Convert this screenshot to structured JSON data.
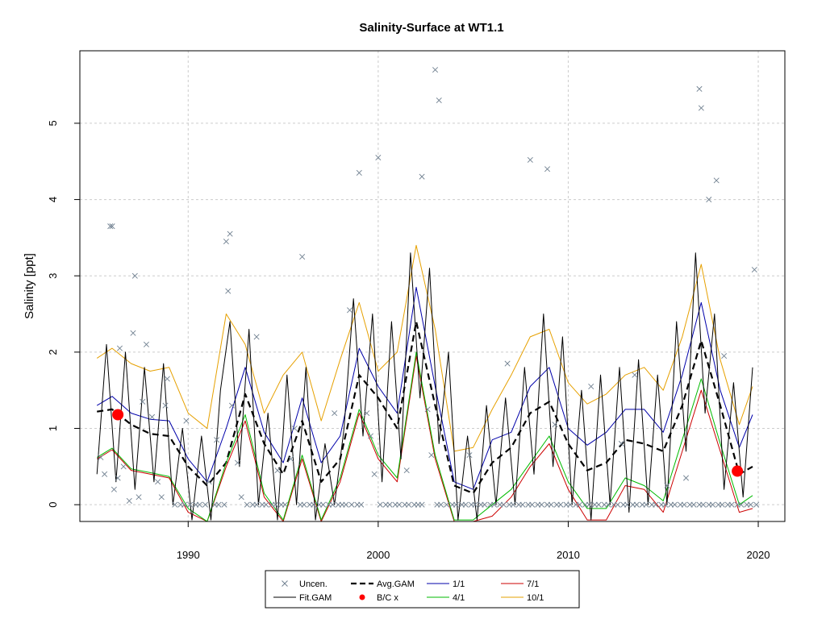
{
  "chart_data": {
    "type": "line",
    "title": "Salinity-Surface at WT1.1",
    "xlabel": "",
    "ylabel": "Salinity [ppt]",
    "xlim": [
      1984.3,
      2021.4
    ],
    "ylim": [
      -0.22,
      5.95
    ],
    "x_ticks": [
      1990,
      2000,
      2010,
      2020
    ],
    "y_ticks": [
      0,
      1,
      2,
      3,
      4,
      5
    ],
    "grid": true,
    "legend_position": "bottom-center",
    "legend": [
      {
        "key": "uncen",
        "label": "Uncen.",
        "symbol": "x",
        "color": "#708090"
      },
      {
        "key": "avg_gam",
        "label": "Avg.GAM",
        "symbol": "dash",
        "color": "#000000"
      },
      {
        "key": "q1",
        "label": "1/1",
        "symbol": "line",
        "color": "#0000aa"
      },
      {
        "key": "q7",
        "label": "7/1",
        "symbol": "line",
        "color": "#cc0000"
      },
      {
        "key": "fit_gam",
        "label": "Fit.GAM",
        "symbol": "line",
        "color": "#000000"
      },
      {
        "key": "bc",
        "label": "B/C x",
        "symbol": "dot",
        "color": "#ff0000"
      },
      {
        "key": "q4",
        "label": "4/1",
        "symbol": "line",
        "color": "#00bb00"
      },
      {
        "key": "q10",
        "label": "10/1",
        "symbol": "line",
        "color": "#e6a000"
      }
    ],
    "series": [
      {
        "name": "Avg.GAM",
        "color": "#000000",
        "x": [
          1985.2,
          1986,
          1987,
          1988,
          1989,
          1990,
          1991,
          1992,
          1993,
          1994,
          1995,
          1996,
          1997,
          1998,
          1999,
          2000,
          2001,
          2002,
          2003,
          2004,
          2005,
          2006,
          2007,
          2008,
          2009,
          2010,
          2011,
          2012,
          2013,
          2014,
          2015,
          2016,
          2017,
          2018,
          2019,
          2019.7
        ],
        "y": [
          1.22,
          1.25,
          1.05,
          0.93,
          0.9,
          0.5,
          0.25,
          0.55,
          1.45,
          0.8,
          0.4,
          1.1,
          0.3,
          0.6,
          1.7,
          1.4,
          1.0,
          2.4,
          1.3,
          0.25,
          0.15,
          0.55,
          0.75,
          1.2,
          1.35,
          0.8,
          0.45,
          0.55,
          0.85,
          0.8,
          0.7,
          1.3,
          2.15,
          1.3,
          0.4,
          0.5
        ]
      },
      {
        "name": "1/1",
        "color": "#0000aa",
        "x": [
          1985.2,
          1986,
          1987,
          1988,
          1989,
          1990,
          1991,
          1992,
          1993,
          1994,
          1995,
          1996,
          1997,
          1998,
          1999,
          2000,
          2001,
          2002,
          2003,
          2004,
          2005,
          2006,
          2007,
          2008,
          2009,
          2010,
          2011,
          2012,
          2013,
          2014,
          2015,
          2016,
          2017,
          2018,
          2019,
          2019.7
        ],
        "y": [
          1.3,
          1.42,
          1.2,
          1.12,
          1.1,
          0.6,
          0.3,
          1.0,
          1.8,
          0.95,
          0.55,
          1.4,
          0.55,
          0.9,
          2.05,
          1.55,
          1.2,
          2.85,
          1.55,
          0.3,
          0.2,
          0.85,
          0.95,
          1.55,
          1.8,
          1.0,
          0.78,
          0.95,
          1.25,
          1.25,
          0.95,
          1.7,
          2.65,
          1.5,
          0.75,
          1.18
        ]
      },
      {
        "name": "7/1",
        "color": "#cc0000",
        "x": [
          1985.2,
          1986,
          1987,
          1988,
          1989,
          1990,
          1991,
          1992,
          1993,
          1994,
          1995,
          1996,
          1997,
          1998,
          1999,
          2000,
          2001,
          2002,
          2003,
          2004,
          2005,
          2006,
          2007,
          2008,
          2009,
          2010,
          2011,
          2012,
          2013,
          2014,
          2015,
          2016,
          2017,
          2018,
          2019,
          2019.7
        ],
        "y": [
          0.6,
          0.72,
          0.45,
          0.4,
          0.35,
          -0.1,
          -0.25,
          0.5,
          1.1,
          0.1,
          -0.25,
          0.6,
          -0.25,
          0.3,
          1.2,
          0.6,
          0.3,
          1.95,
          0.6,
          -0.25,
          -0.25,
          -0.15,
          0.1,
          0.5,
          0.8,
          0.2,
          -0.2,
          -0.2,
          0.25,
          0.2,
          -0.1,
          0.7,
          1.5,
          0.7,
          -0.1,
          -0.05
        ]
      },
      {
        "name": "4/1",
        "color": "#00bb00",
        "x": [
          1985.2,
          1986,
          1987,
          1988,
          1989,
          1990,
          1991,
          1992,
          1993,
          1994,
          1995,
          1996,
          1997,
          1998,
          1999,
          2000,
          2001,
          2002,
          2003,
          2004,
          2005,
          2006,
          2007,
          2008,
          2009,
          2010,
          2011,
          2012,
          2013,
          2014,
          2015,
          2016,
          2017,
          2018,
          2019,
          2019.7
        ],
        "y": [
          0.62,
          0.74,
          0.47,
          0.42,
          0.37,
          -0.05,
          -0.22,
          0.55,
          1.18,
          0.15,
          -0.2,
          0.65,
          -0.2,
          0.35,
          1.25,
          0.65,
          0.35,
          2.0,
          0.65,
          -0.2,
          -0.2,
          0.0,
          0.2,
          0.55,
          0.9,
          0.3,
          -0.05,
          -0.05,
          0.35,
          0.25,
          0.05,
          0.85,
          1.65,
          0.8,
          0.0,
          0.12
        ]
      },
      {
        "name": "10/1",
        "color": "#e6a000",
        "x": [
          1985.2,
          1986,
          1987,
          1988,
          1989,
          1990,
          1991,
          1992,
          1993,
          1994,
          1995,
          1996,
          1997,
          1998,
          1999,
          2000,
          2001,
          2002,
          2003,
          2004,
          2005,
          2006,
          2007,
          2008,
          2009,
          2010,
          2011,
          2012,
          2013,
          2014,
          2015,
          2016,
          2017,
          2018,
          2019,
          2019.7
        ],
        "y": [
          1.92,
          2.05,
          1.85,
          1.75,
          1.8,
          1.2,
          1.0,
          2.5,
          2.1,
          1.2,
          1.7,
          2.0,
          1.1,
          1.9,
          2.65,
          1.75,
          2.0,
          3.4,
          2.3,
          0.7,
          0.75,
          1.25,
          1.7,
          2.2,
          2.3,
          1.6,
          1.32,
          1.45,
          1.7,
          1.8,
          1.5,
          2.2,
          3.15,
          1.9,
          1.05,
          1.55
        ]
      },
      {
        "name": "Fit.GAM",
        "color": "#000000",
        "x": [
          1985.2,
          1985.7,
          1986.2,
          1986.7,
          1987.2,
          1987.7,
          1988.2,
          1988.7,
          1989.2,
          1989.7,
          1990.2,
          1990.7,
          1991.2,
          1991.7,
          1992.2,
          1992.7,
          1993.2,
          1993.7,
          1994.2,
          1994.7,
          1995.2,
          1995.7,
          1996.2,
          1996.7,
          1997.2,
          1997.7,
          1998.2,
          1998.7,
          1999.2,
          1999.7,
          2000.2,
          2000.7,
          2001.2,
          2001.7,
          2002.2,
          2002.7,
          2003.2,
          2003.7,
          2004.2,
          2004.7,
          2005.2,
          2005.7,
          2006.2,
          2006.7,
          2007.2,
          2007.7,
          2008.2,
          2008.7,
          2009.2,
          2009.7,
          2010.2,
          2010.7,
          2011.2,
          2011.7,
          2012.2,
          2012.7,
          2013.2,
          2013.7,
          2014.2,
          2014.7,
          2015.2,
          2015.7,
          2016.2,
          2016.7,
          2017.2,
          2017.7,
          2018.2,
          2018.7,
          2019.2,
          2019.7
        ],
        "y": [
          0.4,
          2.1,
          0.3,
          2.0,
          0.2,
          1.8,
          0.3,
          1.85,
          0.0,
          1.0,
          -0.2,
          0.9,
          -0.2,
          1.5,
          2.4,
          0.5,
          2.3,
          0.0,
          1.2,
          -0.2,
          1.7,
          0.0,
          1.8,
          -0.2,
          0.8,
          0.0,
          1.0,
          2.7,
          0.9,
          2.5,
          0.3,
          2.4,
          0.6,
          3.3,
          1.4,
          3.1,
          0.8,
          2.0,
          -0.2,
          0.9,
          -0.2,
          1.3,
          0.0,
          1.4,
          0.0,
          1.8,
          0.4,
          2.5,
          0.5,
          2.2,
          0.0,
          1.5,
          -0.2,
          1.7,
          0.0,
          1.8,
          -0.1,
          1.9,
          0.0,
          1.7,
          0.0,
          2.4,
          0.7,
          3.3,
          1.2,
          2.5,
          0.2,
          1.6,
          0.1,
          1.8
        ]
      }
    ],
    "scatter_uncen": {
      "name": "Uncen.",
      "color": "#708090",
      "x": [
        1985.4,
        1985.6,
        1985.9,
        1986.1,
        1986.3,
        1986.4,
        1986.6,
        1986.9,
        1987.1,
        1987.4,
        1987.6,
        1987.8,
        1988.1,
        1988.4,
        1988.6,
        1988.8,
        1989.3,
        1989.6,
        1989.8,
        1990.1,
        1990.4,
        1990.6,
        1990.9,
        1991.1,
        1991.4,
        1991.6,
        1991.9,
        1992.1,
        1992.3,
        1992.6,
        1992.8,
        1993.1,
        1993.4,
        1993.6,
        1993.9,
        1994.1,
        1994.4,
        1994.6,
        1994.9,
        1995.1,
        1995.4,
        1995.6,
        1995.9,
        1996.1,
        1996.4,
        1996.6,
        1996.9,
        1997.1,
        1997.4,
        1997.6,
        1997.9,
        1998.1,
        1998.3,
        1998.6,
        1998.9,
        1999.1,
        1999.4,
        1999.6,
        1999.8,
        2000.1,
        2000.4,
        2000.6,
        2000.9,
        2001.1,
        2001.4,
        2001.6,
        2001.9,
        2002.1,
        2002.3,
        2002.6,
        2002.8,
        2003.1,
        2003.3,
        2003.6,
        2003.9,
        2004.1,
        2004.4,
        2004.6,
        2004.9,
        2005.1,
        2005.4,
        2005.6,
        2005.9,
        2006.1,
        2006.4,
        2006.6,
        2006.9,
        2007.1,
        2007.4,
        2007.6,
        2007.9,
        2008.1,
        2008.4,
        2008.6,
        2008.9,
        2009.1,
        2009.4,
        2009.6,
        2009.9,
        2010.1,
        2010.4,
        2010.6,
        2010.9,
        2011.1,
        2011.4,
        2011.6,
        2011.9,
        2012.1,
        2012.4,
        2012.6,
        2012.9,
        2013.1,
        2013.4,
        2013.6,
        2013.9,
        2014.1,
        2014.4,
        2014.6,
        2014.9,
        2015.1,
        2015.4,
        2015.6,
        2015.9,
        2016.1,
        2016.4,
        2016.6,
        2016.9,
        2017.1,
        2017.4,
        2017.6,
        2017.9,
        2018.1,
        2018.4,
        2018.6,
        2018.9,
        2019.1,
        2019.4,
        2019.6,
        2019.9,
        1986.0,
        1987.2,
        1992.0,
        1992.2,
        1999.0,
        2000.0,
        2002.3,
        2003.0,
        2003.2,
        2008.0,
        2008.9,
        2016.9,
        2017.0,
        2017.4,
        2017.8,
        1988.9,
        1989.9,
        1991.5,
        1993.6,
        1994.7,
        1996.0,
        1997.7,
        1998.5,
        2001.5,
        2004.8,
        2006.8,
        2009.3,
        2011.2,
        2012.8,
        2013.5,
        2015.2,
        2016.2,
        2018.2,
        2019.8
      ],
      "y": [
        0.62,
        0.4,
        3.65,
        0.2,
        0.35,
        2.05,
        0.5,
        0.05,
        2.25,
        0.1,
        1.35,
        2.1,
        1.15,
        0.3,
        0.1,
        1.3,
        0.0,
        0.0,
        0.0,
        0.0,
        0.0,
        0.0,
        0.0,
        0.3,
        0.0,
        0.0,
        0.0,
        2.8,
        1.3,
        0.55,
        0.1,
        0.0,
        0.0,
        0.0,
        0.0,
        0.0,
        0.0,
        0.0,
        0.0,
        0.0,
        0.6,
        1.0,
        0.0,
        0.0,
        0.0,
        0.0,
        0.0,
        0.0,
        0.0,
        0.0,
        0.0,
        0.0,
        0.0,
        0.0,
        0.0,
        0.0,
        1.2,
        0.9,
        0.4,
        0.0,
        0.0,
        0.0,
        0.0,
        0.0,
        0.0,
        0.0,
        0.0,
        0.0,
        0.0,
        1.25,
        0.65,
        0.0,
        0.0,
        0.0,
        0.0,
        0.0,
        0.0,
        0.0,
        0.0,
        0.0,
        0.0,
        0.0,
        0.0,
        0.0,
        0.0,
        0.0,
        0.0,
        0.0,
        0.0,
        0.0,
        0.0,
        0.0,
        0.0,
        0.0,
        0.0,
        0.0,
        0.0,
        0.0,
        0.0,
        0.0,
        0.0,
        0.0,
        0.0,
        0.0,
        0.0,
        0.0,
        0.0,
        0.0,
        0.0,
        0.0,
        0.0,
        0.0,
        0.0,
        0.0,
        0.0,
        0.0,
        0.0,
        0.0,
        0.0,
        0.0,
        0.0,
        0.0,
        0.0,
        0.0,
        0.0,
        0.0,
        0.0,
        0.0,
        0.0,
        0.0,
        0.0,
        0.0,
        0.0,
        0.0,
        0.0,
        0.0,
        0.0,
        0.0,
        0.0,
        3.65,
        3.0,
        3.45,
        3.55,
        4.35,
        4.55,
        4.3,
        5.7,
        5.3,
        4.52,
        4.4,
        5.45,
        5.2,
        4.0,
        4.25,
        1.65,
        1.1,
        0.85,
        2.2,
        0.45,
        3.25,
        1.2,
        2.55,
        0.45,
        0.65,
        1.85,
        1.05,
        1.55,
        0.8,
        1.7,
        0.25,
        0.35,
        1.95,
        3.08
      ]
    },
    "bc_points": {
      "name": "B/C x",
      "color": "#ff0000",
      "x": [
        1986.3,
        2018.9
      ],
      "y": [
        1.18,
        0.44
      ]
    }
  }
}
